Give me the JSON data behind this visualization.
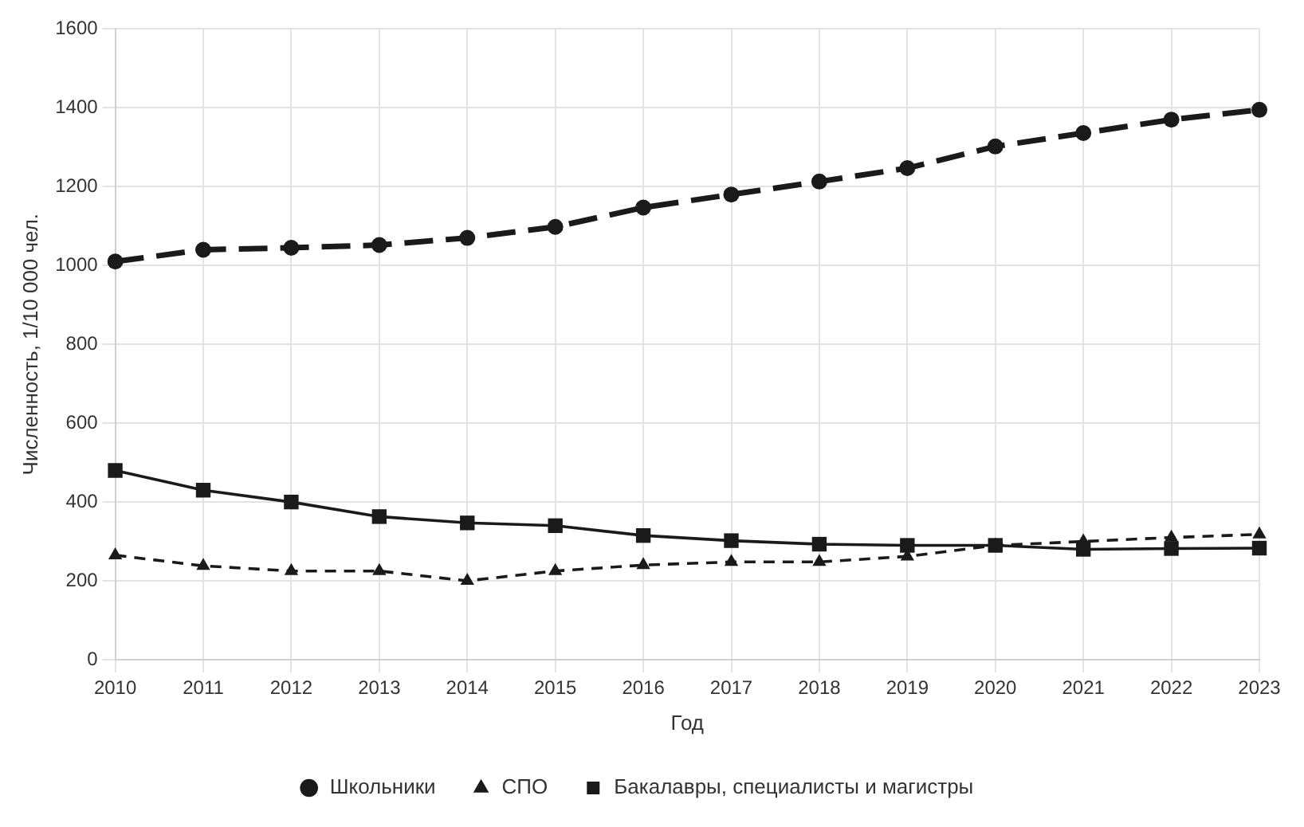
{
  "chart_data": {
    "type": "line",
    "xlabel": "Год",
    "ylabel": "Численность, 1/10 000 чел.",
    "categories": [
      "2010",
      "2011",
      "2012",
      "2013",
      "2014",
      "2015",
      "2016",
      "2017",
      "2018",
      "2019",
      "2020",
      "2021",
      "2022",
      "2023"
    ],
    "series": [
      {
        "name": "Школьники",
        "color": "#1a1a1a",
        "marker": "circle",
        "line_style": "dashed",
        "values": [
          1010,
          1040,
          1045,
          1052,
          1070,
          1098,
          1147,
          1180,
          1213,
          1247,
          1302,
          1336,
          1370,
          1395
        ]
      },
      {
        "name": "СПО",
        "color": "#1a1a1a",
        "marker": "triangle",
        "line_style": "dashed",
        "values": [
          265,
          238,
          225,
          225,
          200,
          225,
          240,
          248,
          248,
          262,
          290,
          300,
          310,
          318
        ]
      },
      {
        "name": "Бакалавры, специалисты и магистры",
        "color": "#1a1a1a",
        "marker": "square",
        "line_style": "solid",
        "values": [
          480,
          430,
          400,
          363,
          347,
          340,
          315,
          302,
          293,
          290,
          290,
          280,
          282,
          283
        ]
      }
    ],
    "ylim": [
      0,
      1600
    ],
    "yticks": [
      0,
      200,
      400,
      600,
      800,
      1000,
      1200,
      1400,
      1600
    ],
    "grid": true,
    "legend": "bottom"
  }
}
